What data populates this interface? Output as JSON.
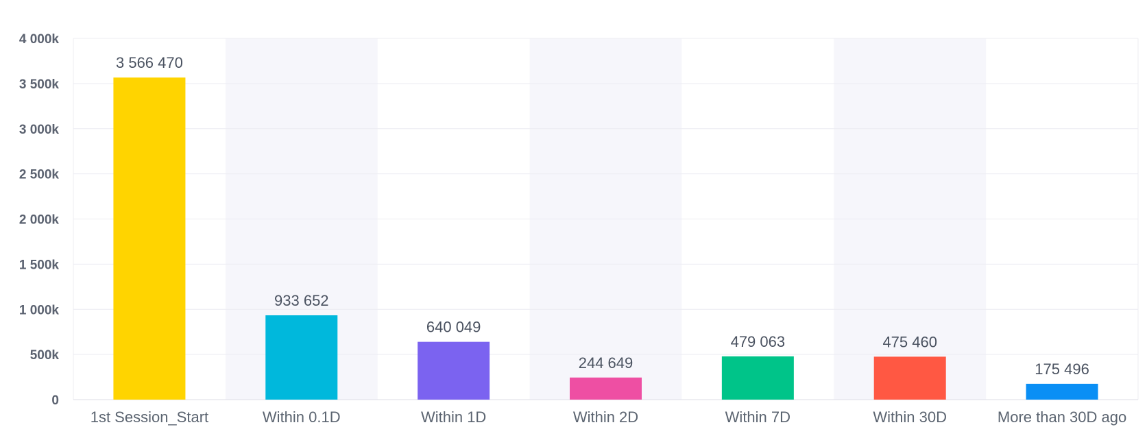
{
  "chart_data": {
    "type": "bar",
    "title": "",
    "xlabel": "",
    "ylabel": "",
    "categories": [
      "1st Session_Start",
      "Within 0.1D",
      "Within 1D",
      "Within 2D",
      "Within 7D",
      "Within 30D",
      "More than 30D ago"
    ],
    "values": [
      3566470,
      933652,
      640049,
      244649,
      479063,
      475460,
      175496
    ],
    "value_labels": [
      "3 566 470",
      "933 652",
      "640 049",
      "244 649",
      "479 063",
      "475 460",
      "175 496"
    ],
    "colors": [
      "#ffd400",
      "#00b8dc",
      "#7b63f0",
      "#ee4fa3",
      "#00c489",
      "#ff5843",
      "#0a8ff5"
    ],
    "ylim": [
      0,
      4000000
    ],
    "y_ticks": [
      0,
      500000,
      1000000,
      1500000,
      2000000,
      2500000,
      3000000,
      3500000,
      4000000
    ],
    "y_tick_labels": [
      "0",
      "500k",
      "1 000k",
      "1 500k",
      "2 000k",
      "2 500k",
      "3 000k",
      "3 500k",
      "4 000k"
    ],
    "grid": true,
    "legend": "none",
    "band_color": "#f6f6fb",
    "grid_color": "#ececf2",
    "axis_color": "#dcdce6"
  }
}
